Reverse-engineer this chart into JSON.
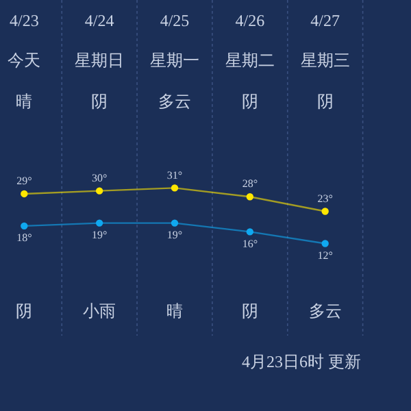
{
  "chart_data": {
    "type": "line",
    "categories": [
      "4/23",
      "4/24",
      "4/25",
      "4/26",
      "4/27"
    ],
    "series": [
      {
        "color": "#ffe600",
        "values": [
          29,
          30,
          31,
          28,
          23
        ],
        "value_labels": [
          "29°",
          "30°",
          "31°",
          "28°",
          "23°"
        ]
      },
      {
        "color": "#10a8f0",
        "values": [
          18,
          19,
          19,
          16,
          12
        ],
        "value_labels": [
          "18°",
          "19°",
          "19°",
          "16°",
          "12°"
        ]
      }
    ],
    "marker": "circle",
    "grid": "x",
    "legend": false,
    "annotations": [
      "今天",
      "晴",
      "阴",
      "星期日",
      "阴",
      "小雨",
      "星期一",
      "多云",
      "晴",
      "星期二",
      "阴",
      "阴",
      "星期三",
      "阴",
      "多云",
      "4月23日6时 更新"
    ]
  }
}
